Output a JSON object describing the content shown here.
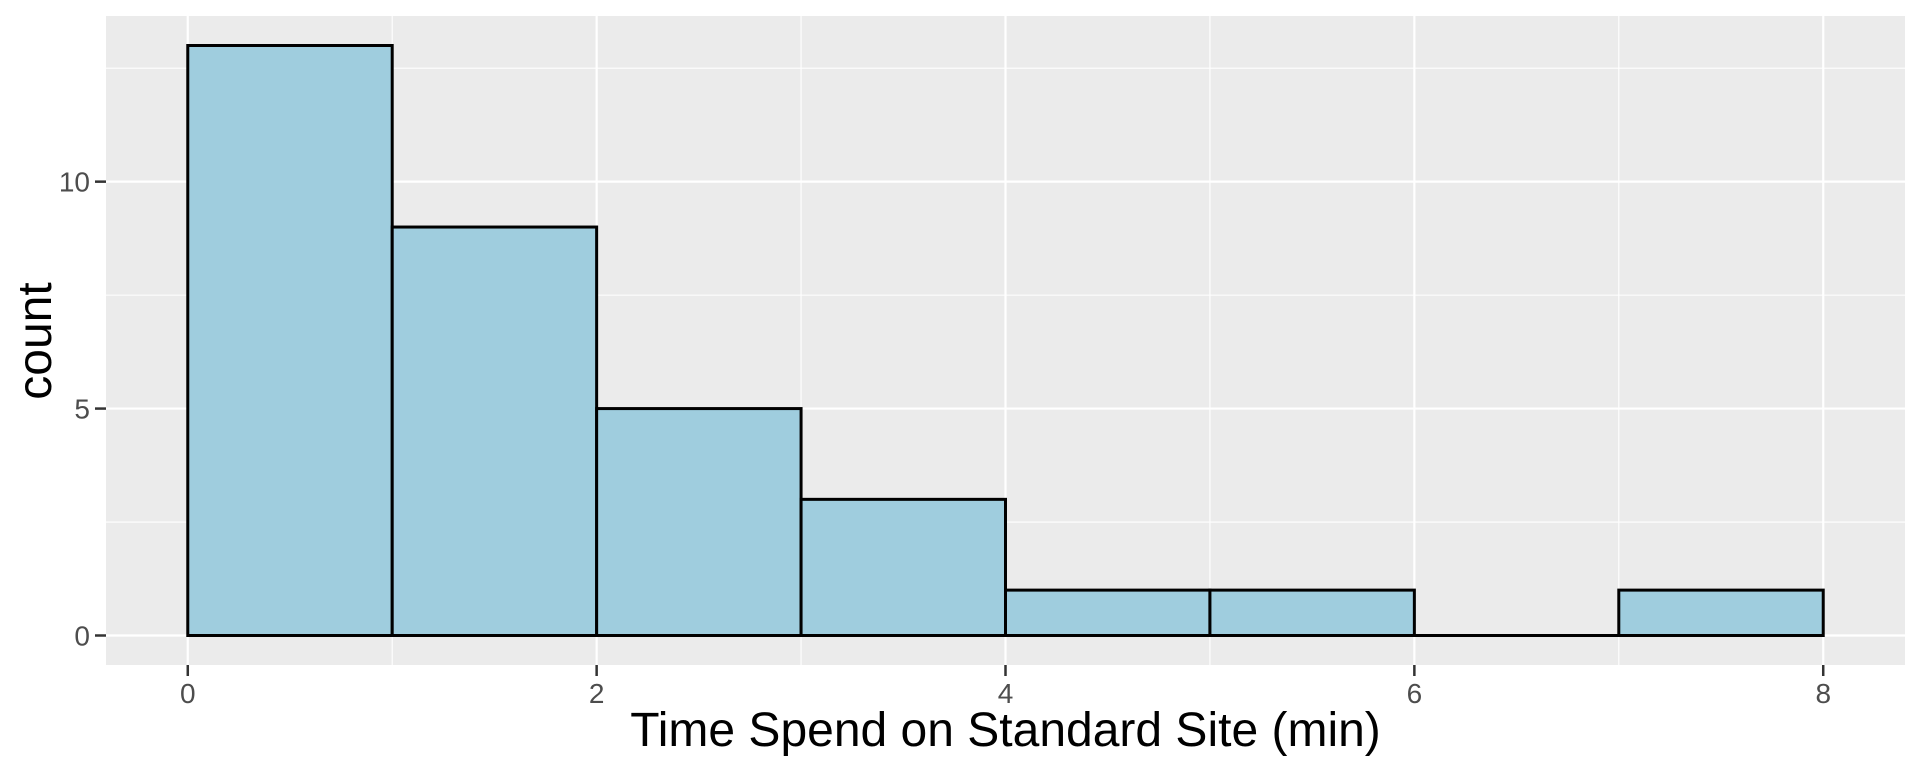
{
  "chart_data": {
    "type": "bar",
    "subtype": "histogram",
    "title": "",
    "xlabel": "Time Spend on Standard Site (min)",
    "ylabel": "count",
    "bins": [
      {
        "x0": 0,
        "x1": 1,
        "count": 13
      },
      {
        "x0": 1,
        "x1": 2,
        "count": 9
      },
      {
        "x0": 2,
        "x1": 3,
        "count": 5
      },
      {
        "x0": 3,
        "x1": 4,
        "count": 3
      },
      {
        "x0": 4,
        "x1": 5,
        "count": 1
      },
      {
        "x0": 5,
        "x1": 6,
        "count": 1
      },
      {
        "x0": 6,
        "x1": 7,
        "count": 0
      },
      {
        "x0": 7,
        "x1": 8,
        "count": 1
      }
    ],
    "x_ticks": [
      0,
      2,
      4,
      6,
      8
    ],
    "y_ticks": [
      0,
      5,
      10
    ],
    "x_minor_gridlines": [
      1,
      3,
      5,
      7
    ],
    "y_minor_gridlines": [
      2.5,
      7.5,
      12.5
    ],
    "xlim": [
      0,
      8
    ],
    "ylim": [
      0,
      13
    ],
    "axis_expansion": 0.05,
    "grid": true,
    "legend_position": "none",
    "colors": {
      "bar_fill": "#9FCDDE",
      "bar_stroke": "#000000",
      "panel_background": "#EBEBEB",
      "grid_major": "#FFFFFF",
      "grid_minor": "#FFFFFF",
      "tick_mark": "#333333",
      "tick_label": "#4D4D4D",
      "axis_title": "#000000",
      "page_background": "#FFFFFF"
    }
  }
}
